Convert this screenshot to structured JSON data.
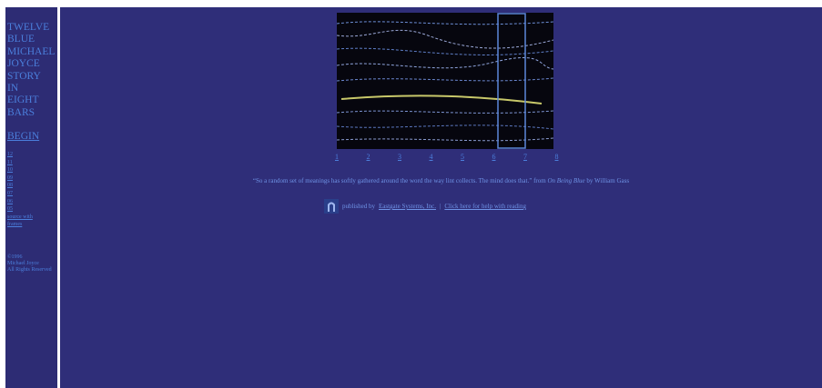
{
  "sidebar": {
    "title_lines": [
      "TWELVE",
      "BLUE",
      "MICHAEL",
      "JOYCE",
      "STORY",
      "IN",
      "EIGHT",
      "BARS"
    ],
    "begin": "BEGIN",
    "bars": [
      "12",
      "11",
      "10",
      "09",
      "08",
      "07",
      "06",
      "05",
      "source with",
      "frames"
    ],
    "copyright": [
      "©1996",
      "Michael Joyce",
      "All Rights Reserved"
    ]
  },
  "main": {
    "bar_links": [
      "1",
      "2",
      "3",
      "4",
      "5",
      "6",
      "7",
      "8"
    ],
    "quote": {
      "text": "“So a random set of meanings has softly gathered around the word the way lint collects. The mind does that.”",
      "from": "from",
      "book": "On Being Blue",
      "by": "by William Gass"
    },
    "publisher": {
      "prefix": "published by",
      "link": "Eastgate Systems, Inc.",
      "separator": "|",
      "help": "Click here for help with reading"
    }
  }
}
